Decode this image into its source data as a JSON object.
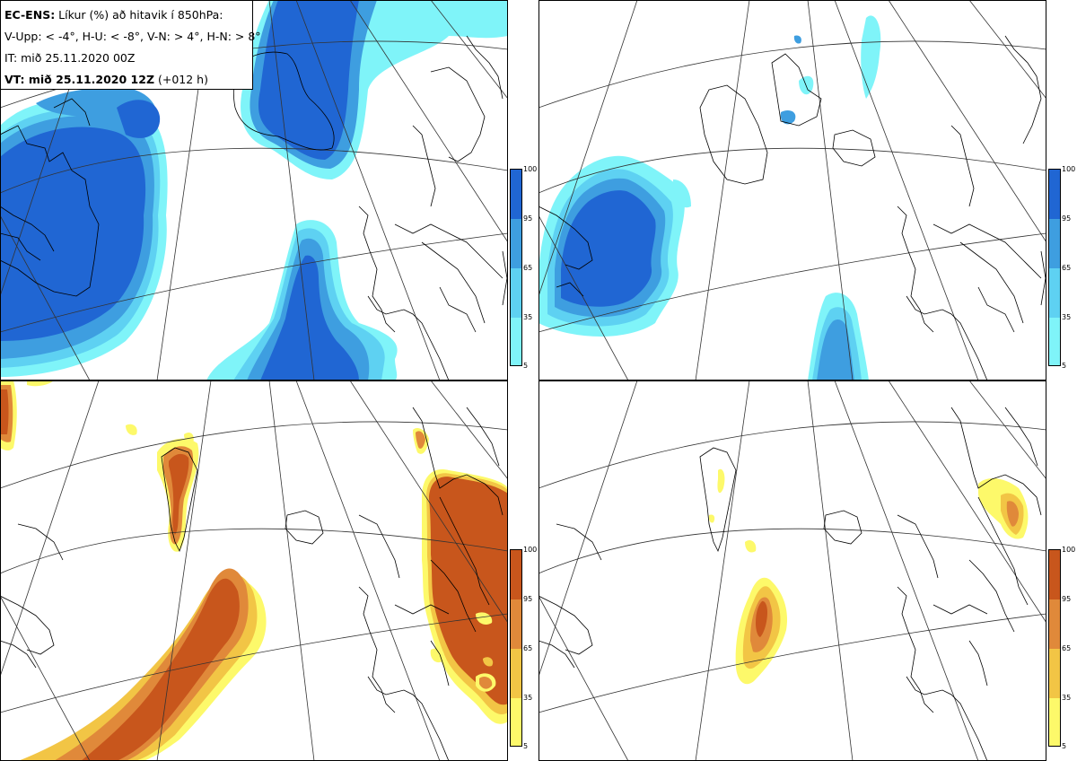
{
  "info": {
    "line1_bold": "EC-ENS:",
    "line1_rest": " Líkur (%) að hitavik í 850hPa:",
    "line2": "V-Upp: < -4°, H-U: < -8°, V-N: > 4°, H-N: > 8°",
    "line3": "IT: mið 25.11.2020 00Z",
    "line4_bold": "VT: mið 25.11.2020 12Z",
    "line4_rest": " (+012 h)"
  },
  "colorbar_ticks": [
    "100",
    "95",
    "65",
    "35",
    "5"
  ],
  "colors": {
    "cold": [
      "#7ff4f9",
      "#5ed1f2",
      "#3e9ee0",
      "#2066d3"
    ],
    "warm": [
      "#fdf96a",
      "#f2c545",
      "#e0893a",
      "#c8561c"
    ],
    "coast": "#000000",
    "grid": "#333333"
  },
  "panels": [
    {
      "name": "V-Upp",
      "scheme": "cold"
    },
    {
      "name": "H-U",
      "scheme": "cold"
    },
    {
      "name": "V-N",
      "scheme": "warm"
    },
    {
      "name": "H-N",
      "scheme": "warm"
    }
  ]
}
